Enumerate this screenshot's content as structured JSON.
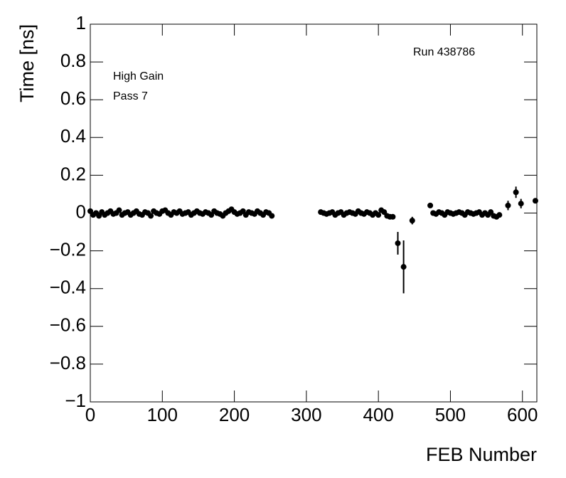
{
  "chart_data": {
    "type": "scatter",
    "xlabel": "FEB Number",
    "ylabel": "Time [ns]",
    "annotations": [
      "Run 438786",
      "High Gain",
      "Pass 7"
    ],
    "color": "#000000",
    "xlim": [
      0,
      620
    ],
    "ylim": [
      -1,
      1
    ],
    "xticks": [
      0,
      100,
      200,
      300,
      400,
      500,
      600
    ],
    "yticks": [
      {
        "value": -1,
        "label": "−1"
      },
      {
        "value": -0.8,
        "label": "−0.8"
      },
      {
        "value": -0.6,
        "label": "−0.6"
      },
      {
        "value": -0.4,
        "label": "−0.4"
      },
      {
        "value": -0.2,
        "label": "−0.2"
      },
      0,
      0.2,
      0.4,
      0.6,
      0.8,
      1
    ],
    "x": [
      0,
      4,
      8,
      12,
      16,
      20,
      24,
      28,
      32,
      36,
      40,
      44,
      48,
      52,
      56,
      60,
      64,
      68,
      72,
      76,
      80,
      84,
      88,
      92,
      96,
      100,
      104,
      108,
      112,
      116,
      120,
      124,
      128,
      132,
      136,
      140,
      144,
      148,
      152,
      156,
      160,
      164,
      168,
      172,
      176,
      180,
      184,
      188,
      192,
      196,
      200,
      204,
      208,
      212,
      216,
      220,
      224,
      228,
      232,
      236,
      240,
      244,
      248,
      252,
      320,
      324,
      328,
      332,
      336,
      340,
      344,
      348,
      352,
      356,
      360,
      364,
      368,
      372,
      376,
      380,
      384,
      388,
      392,
      396,
      400,
      404,
      408,
      412,
      416,
      420,
      427,
      435,
      447,
      472,
      476,
      480,
      484,
      488,
      492,
      496,
      500,
      504,
      508,
      512,
      516,
      520,
      524,
      528,
      532,
      536,
      540,
      544,
      548,
      552,
      556,
      560,
      564,
      568,
      580,
      591,
      598,
      618
    ],
    "values": [
      0.01,
      -0.01,
      0.0,
      -0.015,
      0.005,
      -0.01,
      0.0,
      0.01,
      -0.005,
      0.0,
      0.015,
      -0.01,
      0.0,
      0.005,
      -0.01,
      0.0,
      0.01,
      -0.005,
      -0.01,
      0.005,
      0.0,
      -0.015,
      0.01,
      0.0,
      -0.005,
      0.01,
      0.015,
      0.0,
      -0.01,
      0.005,
      0.0,
      0.01,
      -0.005,
      0.0,
      0.005,
      -0.01,
      0.0,
      0.01,
      0.0,
      -0.005,
      0.005,
      0.0,
      -0.01,
      0.01,
      0.0,
      -0.005,
      -0.015,
      0.0,
      0.01,
      0.02,
      0.005,
      -0.005,
      0.0,
      0.01,
      -0.01,
      0.005,
      0.0,
      -0.005,
      0.01,
      0.0,
      -0.01,
      0.005,
      0.0,
      -0.015,
      0.005,
      0.0,
      -0.005,
      0.0,
      0.005,
      -0.01,
      0.0,
      0.005,
      -0.01,
      0.0,
      0.005,
      0.0,
      -0.005,
      0.01,
      0.0,
      -0.005,
      0.005,
      0.0,
      -0.01,
      0.0,
      -0.01,
      0.015,
      0.005,
      -0.015,
      -0.02,
      -0.02,
      -0.16,
      -0.285,
      -0.04,
      0.04,
      0.0,
      -0.005,
      0.005,
      0.0,
      -0.01,
      0.005,
      0.0,
      -0.005,
      0.0,
      0.005,
      0.0,
      -0.01,
      0.005,
      0.0,
      -0.005,
      0.0,
      0.005,
      -0.01,
      0.0,
      -0.01,
      0.005,
      -0.015,
      -0.02,
      -0.01,
      0.04,
      0.11,
      0.05,
      0.065
    ],
    "errors": [
      0.008,
      0.008,
      0.008,
      0.008,
      0.008,
      0.008,
      0.008,
      0.008,
      0.008,
      0.008,
      0.008,
      0.008,
      0.008,
      0.008,
      0.008,
      0.008,
      0.008,
      0.008,
      0.008,
      0.008,
      0.008,
      0.008,
      0.008,
      0.008,
      0.008,
      0.008,
      0.008,
      0.008,
      0.008,
      0.008,
      0.008,
      0.008,
      0.008,
      0.008,
      0.008,
      0.008,
      0.008,
      0.008,
      0.008,
      0.008,
      0.008,
      0.008,
      0.008,
      0.008,
      0.008,
      0.008,
      0.008,
      0.008,
      0.008,
      0.008,
      0.008,
      0.008,
      0.008,
      0.008,
      0.008,
      0.008,
      0.008,
      0.008,
      0.008,
      0.008,
      0.008,
      0.008,
      0.008,
      0.008,
      0.008,
      0.008,
      0.008,
      0.008,
      0.008,
      0.008,
      0.008,
      0.008,
      0.008,
      0.008,
      0.008,
      0.008,
      0.008,
      0.008,
      0.008,
      0.008,
      0.008,
      0.008,
      0.008,
      0.008,
      0.008,
      0.008,
      0.008,
      0.008,
      0.008,
      0.008,
      0.06,
      0.14,
      0.02,
      0.01,
      0.008,
      0.008,
      0.008,
      0.008,
      0.008,
      0.008,
      0.008,
      0.008,
      0.008,
      0.008,
      0.008,
      0.008,
      0.008,
      0.008,
      0.008,
      0.008,
      0.008,
      0.008,
      0.008,
      0.008,
      0.008,
      0.008,
      0.008,
      0.008,
      0.025,
      0.03,
      0.025,
      0.01
    ]
  }
}
